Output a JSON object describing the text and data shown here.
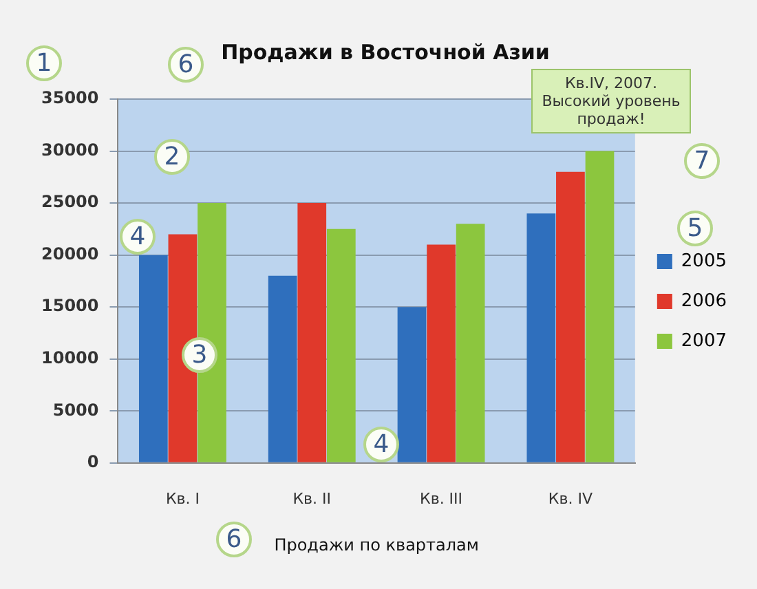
{
  "chart_data": {
    "type": "bar",
    "title": "Продажи в Восточной Азии",
    "xlabel": "Продажи по кварталам",
    "categories": [
      "Кв. I",
      "Кв. II",
      "Кв. III",
      "Кв. IV"
    ],
    "series": [
      {
        "name": "2005",
        "color": "#2f6fbd",
        "values": [
          20000,
          18000,
          15000,
          24000
        ]
      },
      {
        "name": "2006",
        "color": "#e0392b",
        "values": [
          22000,
          25000,
          21000,
          28000
        ]
      },
      {
        "name": "2007",
        "color": "#8cc63e",
        "values": [
          25000,
          22500,
          23000,
          30000
        ]
      }
    ],
    "ylim": [
      0,
      35000
    ],
    "yticks": [
      0,
      5000,
      10000,
      15000,
      20000,
      25000,
      30000,
      35000
    ],
    "grid": "y",
    "legend": "right",
    "annotations": [
      "Кв.IV, 2007. Высокий уровень продаж!",
      "1",
      "6",
      "2",
      "4",
      "3",
      "5",
      "7",
      "4",
      "6"
    ]
  }
}
